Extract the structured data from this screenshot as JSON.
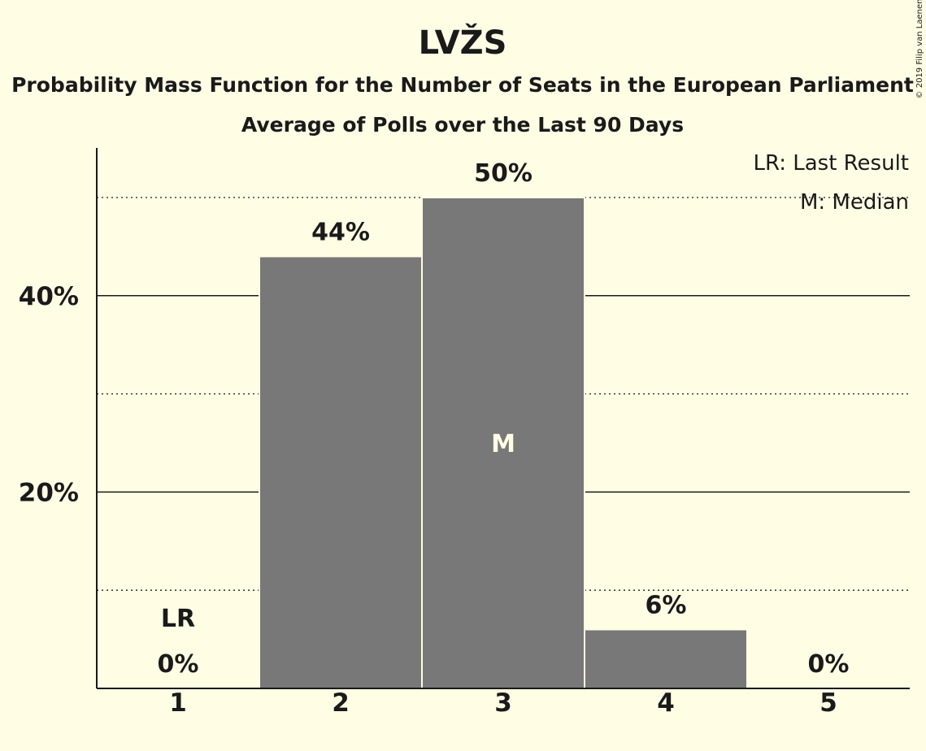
{
  "chart_data": {
    "type": "bar",
    "title": "LVŽS",
    "subtitles": [
      "Probability Mass Function for the Number of Seats in the European Parliament",
      "Average of Polls over the Last 90 Days"
    ],
    "categories": [
      "1",
      "2",
      "3",
      "4",
      "5"
    ],
    "values": [
      0,
      44,
      50,
      6,
      0
    ],
    "value_labels": [
      "0%",
      "44%",
      "50%",
      "6%",
      "0%"
    ],
    "markers": {
      "last_result": {
        "category": "1",
        "label": "LR"
      },
      "median": {
        "category": "3",
        "label": "M"
      }
    },
    "yticks": [
      {
        "value": 20,
        "label": "20%"
      },
      {
        "value": 40,
        "label": "40%"
      }
    ],
    "minor_gridlines": [
      10,
      30,
      50
    ],
    "ylim": [
      0,
      55
    ],
    "legend": {
      "placement": "top-right",
      "entries": [
        "LR: Last Result",
        "M: Median"
      ]
    },
    "copyright": "© 2019 Filip van Laenen",
    "colors": {
      "background": "#FFFEE5",
      "bar": "#787878",
      "text": "#1a1a1a",
      "marker_inside": "#FFFEE5"
    }
  }
}
